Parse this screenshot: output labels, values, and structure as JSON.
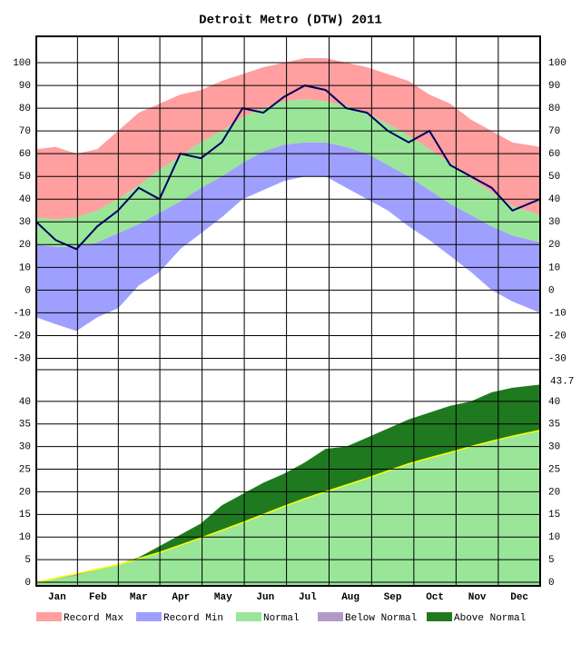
{
  "chart_data": [
    {
      "type": "area",
      "title": "Detroit Metro (DTW) 2011",
      "x": [
        1,
        15,
        30,
        45,
        60,
        75,
        90,
        105,
        120,
        135,
        150,
        165,
        180,
        195,
        210,
        225,
        240,
        255,
        270,
        285,
        300,
        315,
        330,
        345,
        365
      ],
      "xlim": [
        1,
        365
      ],
      "xticks": [
        {
          "value": 16,
          "label": "Jan"
        },
        {
          "value": 45.5,
          "label": "Feb"
        },
        {
          "value": 75,
          "label": "Mar"
        },
        {
          "value": 105.5,
          "label": "Apr"
        },
        {
          "value": 136,
          "label": "May"
        },
        {
          "value": 166.5,
          "label": "Jun"
        },
        {
          "value": 197,
          "label": "Jul"
        },
        {
          "value": 228,
          "label": "Aug"
        },
        {
          "value": 258.5,
          "label": "Sep"
        },
        {
          "value": 289,
          "label": "Oct"
        },
        {
          "value": 319.5,
          "label": "Nov"
        },
        {
          "value": 350,
          "label": "Dec"
        }
      ],
      "ylim": [
        -35,
        111.6
      ],
      "yticks": [
        -30,
        -20,
        -10,
        0,
        10,
        20,
        30,
        40,
        50,
        60,
        70,
        80,
        90,
        100
      ],
      "grid": true,
      "series": [
        {
          "name": "Record Max",
          "color": "#ff9f9f",
          "values": [
            62,
            63,
            60,
            62,
            70,
            78,
            82,
            86,
            88,
            92,
            95,
            98,
            100,
            102,
            102,
            100,
            98,
            95,
            92,
            86,
            82,
            75,
            70,
            65,
            63
          ]
        },
        {
          "name": "Record Min",
          "color": "#9f9fff",
          "values": [
            -12,
            -15,
            -18,
            -12,
            -8,
            2,
            8,
            18,
            25,
            32,
            40,
            44,
            48,
            50,
            50,
            45,
            40,
            35,
            28,
            22,
            15,
            8,
            0,
            -5,
            -10
          ]
        },
        {
          "name": "Normal",
          "color": "#99e699",
          "values": [
            32,
            31,
            32,
            35,
            40,
            46,
            53,
            59,
            65,
            70,
            76,
            80,
            83,
            84,
            83,
            81,
            78,
            73,
            68,
            62,
            56,
            49,
            43,
            37,
            33
          ],
          "low": [
            20,
            19,
            19,
            21,
            25,
            29,
            34,
            39,
            45,
            50,
            56,
            61,
            64,
            65,
            65,
            63,
            60,
            55,
            50,
            44,
            38,
            33,
            28,
            24,
            21
          ]
        }
      ],
      "observed": {
        "color": "#000066",
        "values": [
          30,
          22,
          18,
          28,
          35,
          45,
          40,
          60,
          58,
          65,
          80,
          78,
          85,
          90,
          88,
          80,
          78,
          70,
          65,
          70,
          55,
          50,
          45,
          35,
          40
        ]
      }
    },
    {
      "type": "area",
      "x": [
        1,
        15,
        30,
        45,
        60,
        75,
        90,
        105,
        120,
        135,
        150,
        165,
        180,
        195,
        210,
        225,
        240,
        255,
        270,
        285,
        300,
        315,
        330,
        345,
        365
      ],
      "xlim": [
        1,
        365
      ],
      "ylim": [
        -0.8,
        47
      ],
      "yticks": [
        0,
        5,
        10,
        15,
        20,
        25,
        30,
        35,
        40
      ],
      "grid": true,
      "series": [
        {
          "name": "Below Normal",
          "color": "#b399c8",
          "values": [
            0,
            0.9,
            1.9,
            2.9,
            3.9,
            5.2,
            6.6,
            8.2,
            9.8,
            11.5,
            13.2,
            15,
            16.8,
            18.5,
            20,
            21.5,
            23,
            24.6,
            26.2,
            27.5,
            28.7,
            30,
            31.2,
            32.3,
            33.6
          ]
        },
        {
          "name": "Above Normal",
          "color": "#1f7a1f",
          "values": [
            0,
            0.8,
            1.5,
            2.8,
            4,
            5.5,
            8,
            10.5,
            13,
            17,
            19.5,
            22,
            24,
            26.5,
            29.5,
            30,
            32,
            34,
            36,
            37.5,
            39,
            40,
            42,
            43,
            43.7
          ]
        }
      ],
      "line_color": "#ffff00",
      "annotation": "43.7"
    }
  ]
}
